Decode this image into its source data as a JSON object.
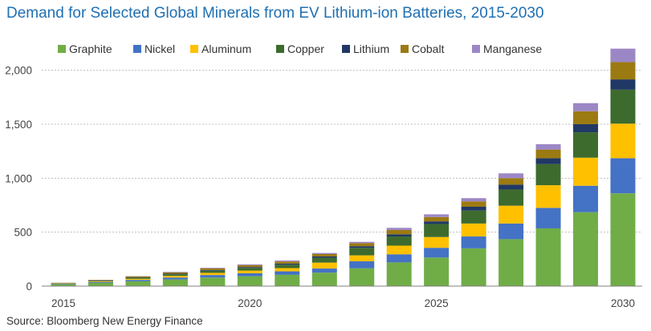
{
  "title": "Demand for Selected Global Minerals from EV Lithium-ion Batteries, 2015-2030",
  "source": "Source: Bloomberg New Energy Finance",
  "chart_data": {
    "type": "bar",
    "stacked": true,
    "title": "Demand for Selected Global Minerals from EV Lithium-ion Batteries, 2015-2030",
    "xlabel": "",
    "ylabel": "",
    "ylim": [
      0,
      2200
    ],
    "yticks": [
      0,
      500,
      1000,
      1500,
      2000
    ],
    "ytick_labels": [
      "0",
      "500",
      "1,000",
      "1,500",
      "2,000"
    ],
    "categories": [
      "2015",
      "2016",
      "2017",
      "2018",
      "2019",
      "2020",
      "2021",
      "2022",
      "2023",
      "2024",
      "2025",
      "2026",
      "2027",
      "2028",
      "2029",
      "2030"
    ],
    "xtick_labels": [
      "2015",
      "2020",
      "2025",
      "2030"
    ],
    "legend_position": "top",
    "grid": "horizontal dashed",
    "series": [
      {
        "name": "Graphite",
        "color": "#70ad47",
        "values": [
          18,
          30,
          45,
          62,
          80,
          92,
          105,
          125,
          165,
          220,
          265,
          350,
          435,
          535,
          685,
          860
        ]
      },
      {
        "name": "Nickel",
        "color": "#4472c4",
        "values": [
          4,
          8,
          13,
          18,
          23,
          27,
          32,
          38,
          65,
          75,
          90,
          110,
          145,
          190,
          245,
          325
        ]
      },
      {
        "name": "Aluminum",
        "color": "#ffc000",
        "values": [
          3,
          6,
          10,
          15,
          20,
          25,
          30,
          55,
          55,
          80,
          100,
          120,
          165,
          210,
          260,
          320
        ]
      },
      {
        "name": "Copper",
        "color": "#3d6b2e",
        "values": [
          3,
          6,
          10,
          15,
          20,
          25,
          32,
          45,
          70,
          85,
          120,
          120,
          150,
          195,
          235,
          315
        ]
      },
      {
        "name": "Lithium",
        "color": "#203864",
        "values": [
          1,
          2,
          3,
          5,
          6,
          8,
          10,
          12,
          15,
          20,
          25,
          35,
          45,
          55,
          75,
          95
        ]
      },
      {
        "name": "Cobalt",
        "color": "#9c7a12",
        "values": [
          2,
          4,
          8,
          12,
          15,
          18,
          20,
          22,
          28,
          40,
          40,
          50,
          60,
          80,
          120,
          160
        ]
      },
      {
        "name": "Manganese",
        "color": "#9c87c6",
        "values": [
          1,
          2,
          3,
          5,
          6,
          7,
          8,
          10,
          12,
          20,
          25,
          30,
          45,
          50,
          75,
          125
        ]
      }
    ]
  }
}
